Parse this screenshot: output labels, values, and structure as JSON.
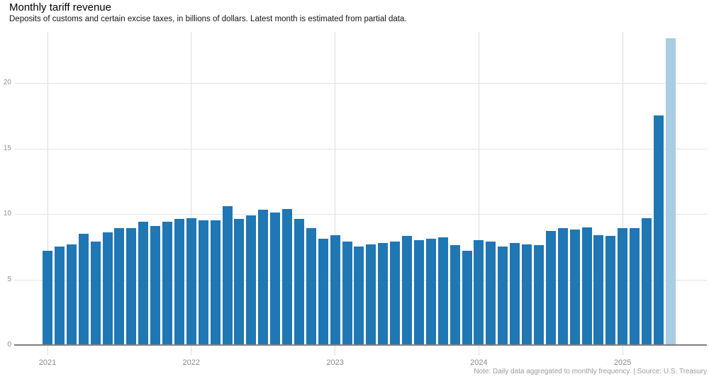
{
  "header": {
    "title": "Monthly tariff revenue",
    "subtitle": "Deposits of customs and certain excise taxes, in billions of dollars. Latest month is estimated from partial data."
  },
  "footer": {
    "note": "Note: Daily data aggregated to monthly frequency. | Source: U.S. Treasury"
  },
  "colors": {
    "bar": "#1f77b4",
    "bar_estimated": "#a9cde2",
    "hgrid": "#e3e3e3",
    "vgrid": "#dcdcdc",
    "axis": "#7f7f7f",
    "tick_label": "#909090"
  },
  "chart_data": {
    "type": "bar",
    "title": "Monthly tariff revenue",
    "subtitle": "Deposits of customs and certain excise taxes, in billions of dollars. Latest month is estimated from partial data.",
    "xlabel": "",
    "ylabel": "",
    "unit": "billions of dollars",
    "grid": true,
    "legend": "none",
    "ylim": [
      0,
      23.6
    ],
    "y_ticks": [
      0,
      5,
      10,
      15,
      20
    ],
    "x_tick_labels": [
      "2021",
      "2022",
      "2023",
      "2024",
      "2025"
    ],
    "last_is_estimate": true,
    "months": [
      "2021-01",
      "2021-02",
      "2021-03",
      "2021-04",
      "2021-05",
      "2021-06",
      "2021-07",
      "2021-08",
      "2021-09",
      "2021-10",
      "2021-11",
      "2021-12",
      "2022-01",
      "2022-02",
      "2022-03",
      "2022-04",
      "2022-05",
      "2022-06",
      "2022-07",
      "2022-08",
      "2022-09",
      "2022-10",
      "2022-11",
      "2022-12",
      "2023-01",
      "2023-02",
      "2023-03",
      "2023-04",
      "2023-05",
      "2023-06",
      "2023-07",
      "2023-08",
      "2023-09",
      "2023-10",
      "2023-11",
      "2023-12",
      "2024-01",
      "2024-02",
      "2024-03",
      "2024-04",
      "2024-05",
      "2024-06",
      "2024-07",
      "2024-08",
      "2024-09",
      "2024-10",
      "2024-11",
      "2024-12",
      "2025-01",
      "2025-02",
      "2025-03",
      "2025-04",
      "2025-05"
    ],
    "values": [
      7.2,
      7.5,
      7.7,
      8.5,
      7.9,
      8.6,
      8.9,
      8.9,
      9.4,
      9.1,
      9.4,
      9.6,
      9.7,
      9.5,
      9.5,
      10.6,
      9.6,
      9.9,
      10.3,
      10.1,
      10.4,
      9.6,
      8.9,
      8.1,
      8.4,
      7.9,
      7.5,
      7.7,
      7.8,
      7.9,
      8.3,
      8.0,
      8.1,
      8.2,
      7.6,
      7.2,
      8.0,
      7.9,
      7.5,
      7.8,
      7.7,
      7.6,
      8.7,
      8.9,
      8.8,
      9.0,
      8.4,
      8.3,
      8.9,
      8.9,
      9.7,
      17.5,
      23.4
    ]
  }
}
